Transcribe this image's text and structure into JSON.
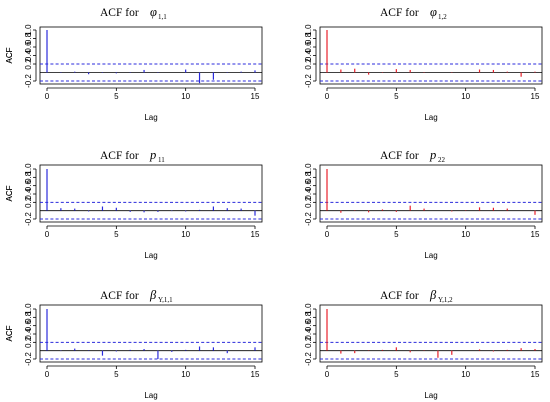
{
  "chart_data": [
    {
      "type": "bar",
      "title_prefix": "ACF for",
      "title_symbol": "φ",
      "title_subscript": "1,1",
      "xlabel": "Lag",
      "ylabel": "ACF",
      "xlim": [
        0,
        15
      ],
      "ylim": [
        -0.2,
        1.0
      ],
      "x_ticks": [
        0,
        5,
        10,
        15
      ],
      "y_ticks": [
        "-0.2",
        "0.2",
        "0.4",
        "0.6",
        "0.8",
        "1.0"
      ],
      "confidence_band": [
        -0.2,
        0.2
      ],
      "color": "#2b2bdc",
      "lags": [
        0,
        1,
        2,
        3,
        4,
        5,
        6,
        7,
        8,
        9,
        10,
        11,
        12,
        13,
        14,
        15
      ],
      "values": [
        1.0,
        -0.01,
        0.02,
        -0.04,
        0.01,
        -0.02,
        0.01,
        0.06,
        0.01,
        0.0,
        0.07,
        -0.25,
        -0.17,
        -0.01,
        0.02,
        0.05
      ]
    },
    {
      "type": "bar",
      "title_prefix": "ACF for",
      "title_symbol": "φ",
      "title_subscript": "1,2",
      "xlabel": "Lag",
      "ylabel": "ACF",
      "xlim": [
        0,
        15
      ],
      "ylim": [
        -0.2,
        1.0
      ],
      "x_ticks": [
        0,
        5,
        10,
        15
      ],
      "y_ticks": [
        "-0.2",
        "0.2",
        "0.4",
        "0.6",
        "0.8",
        "1.0"
      ],
      "confidence_band": [
        -0.2,
        0.2
      ],
      "color": "#e8212b",
      "lags": [
        0,
        1,
        2,
        3,
        4,
        5,
        6,
        7,
        8,
        9,
        10,
        11,
        12,
        13,
        14,
        15
      ],
      "values": [
        1.0,
        0.07,
        0.09,
        -0.05,
        0.01,
        0.08,
        0.06,
        0.01,
        0.0,
        0.01,
        0.0,
        0.07,
        0.06,
        0.02,
        -0.1,
        0.02
      ]
    },
    {
      "type": "bar",
      "title_prefix": "ACF for",
      "title_symbol": "p",
      "title_subscript": "11",
      "xlabel": "Lag",
      "ylabel": "ACF",
      "xlim": [
        0,
        15
      ],
      "ylim": [
        -0.2,
        1.0
      ],
      "x_ticks": [
        0,
        5,
        10,
        15
      ],
      "y_ticks": [
        "-0.2",
        "0.2",
        "0.4",
        "0.6",
        "0.8",
        "1.0"
      ],
      "confidence_band": [
        -0.2,
        0.2
      ],
      "color": "#2b2bdc",
      "lags": [
        0,
        1,
        2,
        3,
        4,
        5,
        6,
        7,
        8,
        9,
        10,
        11,
        12,
        13,
        14,
        15
      ],
      "values": [
        1.0,
        0.06,
        0.05,
        -0.02,
        0.1,
        0.07,
        -0.03,
        -0.04,
        -0.03,
        -0.01,
        -0.02,
        0.02,
        0.1,
        0.06,
        0.05,
        -0.12
      ]
    },
    {
      "type": "bar",
      "title_prefix": "ACF for",
      "title_symbol": "p",
      "title_subscript": "22",
      "xlabel": "Lag",
      "ylabel": "ACF",
      "xlim": [
        0,
        15
      ],
      "ylim": [
        -0.2,
        1.0
      ],
      "x_ticks": [
        0,
        5,
        10,
        15
      ],
      "y_ticks": [
        "-0.2",
        "0.2",
        "0.4",
        "0.6",
        "0.8",
        "1.0"
      ],
      "confidence_band": [
        -0.2,
        0.2
      ],
      "color": "#e8212b",
      "lags": [
        0,
        1,
        2,
        3,
        4,
        5,
        6,
        7,
        8,
        9,
        10,
        11,
        12,
        13,
        14,
        15
      ],
      "values": [
        1.0,
        -0.05,
        0.01,
        -0.04,
        0.03,
        -0.03,
        0.12,
        0.05,
        0.0,
        -0.02,
        0.01,
        0.08,
        0.07,
        0.05,
        0.0,
        -0.1
      ]
    },
    {
      "type": "bar",
      "title_prefix": "ACF for",
      "title_symbol": "β",
      "title_subscript": "Y,1,1",
      "xlabel": "Lag",
      "ylabel": "ACF",
      "xlim": [
        0,
        15
      ],
      "ylim": [
        -0.2,
        1.0
      ],
      "x_ticks": [
        0,
        5,
        10,
        15
      ],
      "y_ticks": [
        "-0.2",
        "0.2",
        "0.4",
        "0.6",
        "0.8",
        "1.0"
      ],
      "confidence_band": [
        -0.2,
        0.2
      ],
      "color": "#2b2bdc",
      "lags": [
        0,
        1,
        2,
        3,
        4,
        5,
        6,
        7,
        8,
        9,
        10,
        11,
        12,
        13,
        14,
        15
      ],
      "values": [
        1.0,
        -0.01,
        0.05,
        0.01,
        -0.12,
        -0.02,
        0.02,
        0.04,
        -0.2,
        -0.03,
        0.02,
        0.1,
        0.08,
        -0.06,
        0.0,
        0.08
      ]
    },
    {
      "type": "bar",
      "title_prefix": "ACF for",
      "title_symbol": "β",
      "title_subscript": "Y,1,2",
      "xlabel": "Lag",
      "ylabel": "ACF",
      "xlim": [
        0,
        15
      ],
      "ylim": [
        -0.2,
        1.0
      ],
      "x_ticks": [
        0,
        5,
        10,
        15
      ],
      "y_ticks": [
        "-0.2",
        "0.2",
        "0.4",
        "0.6",
        "0.8",
        "1.0"
      ],
      "confidence_band": [
        -0.2,
        0.2
      ],
      "color": "#e8212b",
      "lags": [
        0,
        1,
        2,
        3,
        4,
        5,
        6,
        7,
        8,
        9,
        10,
        11,
        12,
        13,
        14,
        15
      ],
      "values": [
        1.0,
        -0.07,
        -0.06,
        0.01,
        0.02,
        0.08,
        -0.04,
        0.01,
        -0.17,
        -0.1,
        0.0,
        0.03,
        -0.02,
        0.02,
        0.06,
        0.04
      ]
    }
  ]
}
